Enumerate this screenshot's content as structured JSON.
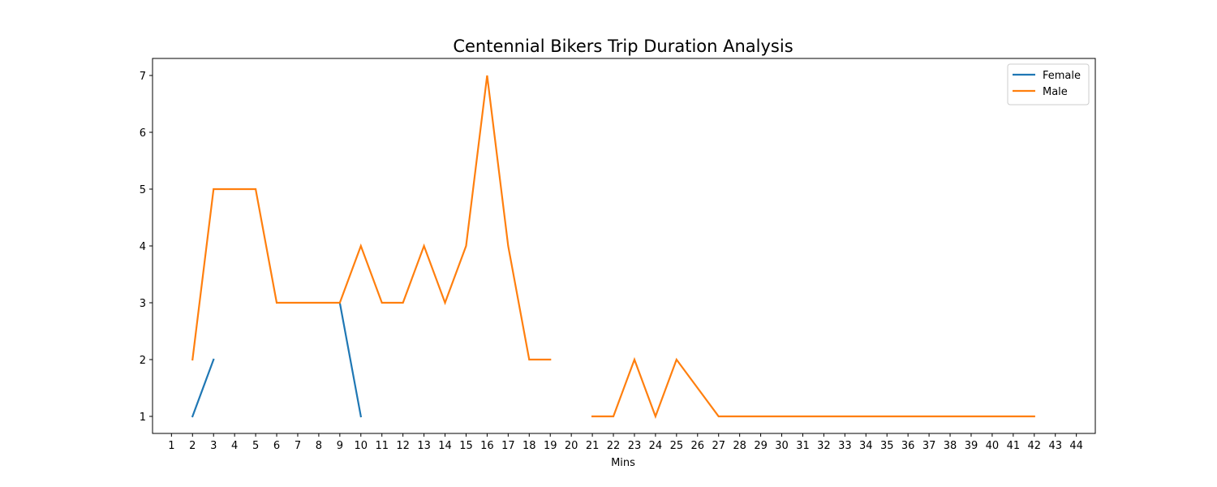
{
  "chart_data": {
    "type": "line",
    "title": "Centennial Bikers Trip Duration Analysis",
    "xlabel": "Mins",
    "ylabel": "",
    "x_ticks": [
      "1",
      "2",
      "3",
      "4",
      "5",
      "6",
      "7",
      "8",
      "9",
      "10",
      "11",
      "12",
      "13",
      "14",
      "15",
      "16",
      "17",
      "18",
      "19",
      "20",
      "21",
      "22",
      "23",
      "24",
      "25",
      "26",
      "27",
      "28",
      "29",
      "30",
      "31",
      "32",
      "33",
      "34",
      "35",
      "36",
      "37",
      "38",
      "39",
      "40",
      "41",
      "42",
      "43",
      "44"
    ],
    "y_ticks": [
      "1",
      "2",
      "3",
      "4",
      "5",
      "6",
      "7"
    ],
    "xlim": [
      0.1,
      44.9
    ],
    "ylim": [
      0.7,
      7.3
    ],
    "grid": false,
    "legend_position": "top-right",
    "series": [
      {
        "name": "Female",
        "color": "#1f77b4",
        "x": [
          2,
          3,
          4,
          5,
          6,
          7,
          8,
          9,
          10
        ],
        "y": [
          1,
          2,
          null,
          null,
          null,
          null,
          null,
          3,
          1
        ]
      },
      {
        "name": "Male",
        "color": "#ff7f0e",
        "x": [
          2,
          3,
          4,
          5,
          6,
          7,
          8,
          9,
          10,
          11,
          12,
          13,
          14,
          15,
          16,
          17,
          18,
          19,
          20,
          21,
          22,
          23,
          24,
          25,
          26,
          27,
          28,
          29,
          30,
          31,
          32,
          33,
          34,
          35,
          36,
          37,
          38,
          39,
          40,
          41,
          42
        ],
        "y": [
          2,
          5,
          5,
          5,
          3,
          3,
          3,
          3,
          4,
          3,
          3,
          4,
          3,
          4,
          7,
          4,
          2,
          2,
          null,
          1,
          1,
          2,
          1,
          2,
          1.5,
          1,
          1,
          1,
          1,
          1,
          1,
          1,
          1,
          1,
          1,
          1,
          1,
          1,
          1,
          1,
          1
        ]
      }
    ]
  }
}
